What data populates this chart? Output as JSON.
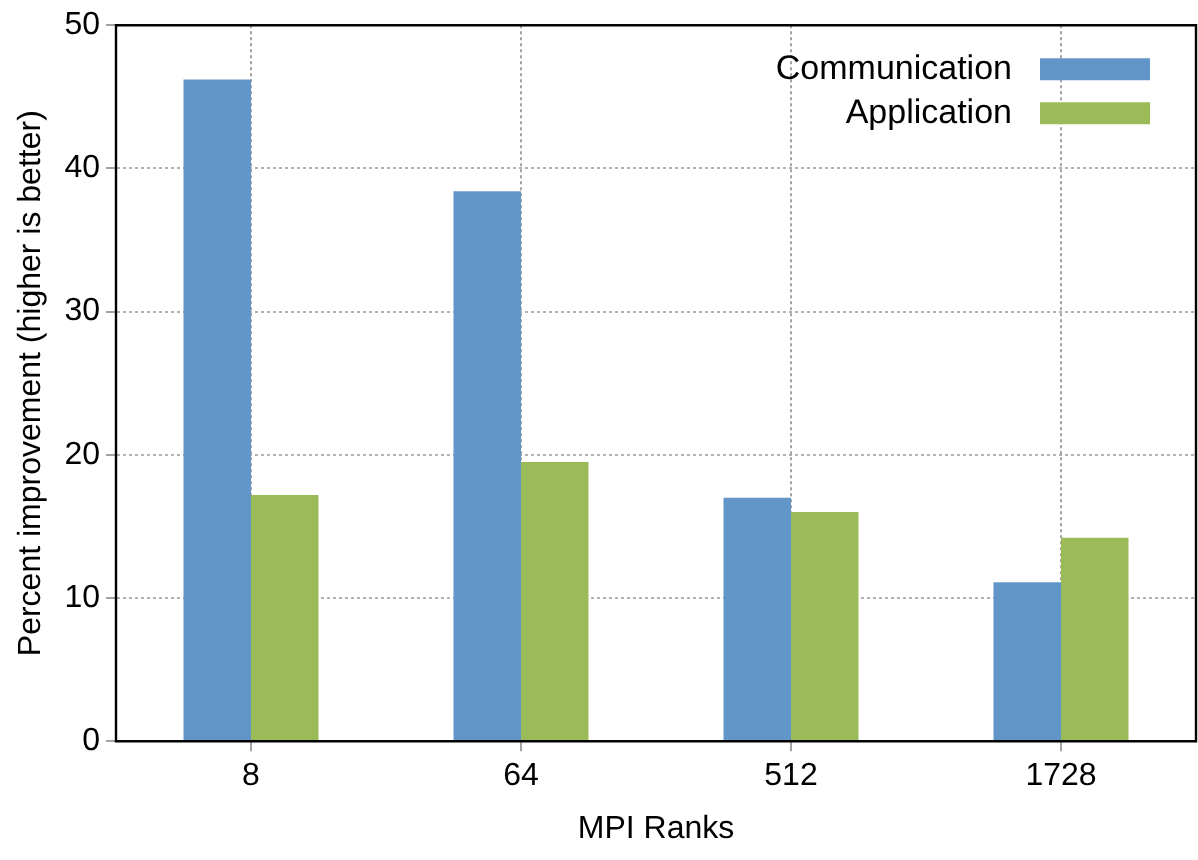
{
  "chart_data": {
    "type": "bar",
    "xlabel": "MPI Ranks",
    "ylabel": "Percent improvement (higher is better)",
    "categories": [
      "8",
      "64",
      "512",
      "1728"
    ],
    "series": [
      {
        "name": "Communication",
        "color": "#6396c8",
        "values": [
          46.2,
          38.4,
          17.0,
          11.1
        ]
      },
      {
        "name": "Application",
        "color": "#9bbb59",
        "values": [
          17.2,
          19.5,
          16.0,
          14.2
        ]
      }
    ],
    "ylim": [
      0,
      50
    ],
    "yticks": [
      0,
      10,
      20,
      30,
      40,
      50
    ],
    "grid": true,
    "legend": "top right"
  }
}
